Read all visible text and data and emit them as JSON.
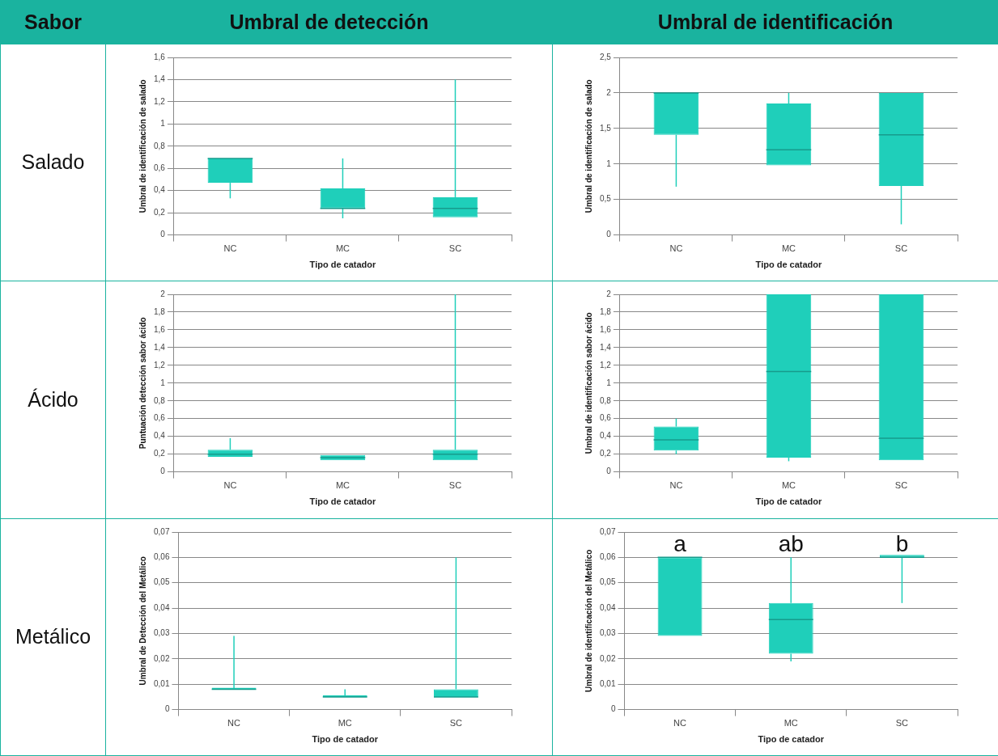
{
  "chart_data": [
    {
      "type": "other",
      "annotations": [
        "Sabor",
        "Umbral de detección",
        "Umbral de identificación",
        "Salado",
        "Ácido",
        "Metálico"
      ]
    },
    {
      "type": "box",
      "xlabel": "Tipo de catador",
      "ylabel": "Umbral de identificación de salado",
      "categories": [
        "NC",
        "MC",
        "SC"
      ],
      "ylim": [
        0,
        1.6
      ],
      "yticks": [
        0,
        {
          "value": 0.2,
          "label": "0,2"
        },
        {
          "value": 0.4,
          "label": "0,4"
        },
        {
          "value": 0.6,
          "label": "0,6"
        },
        {
          "value": 0.8,
          "label": "0,8"
        },
        1,
        {
          "value": 1.2,
          "label": "1,2"
        },
        {
          "value": 1.4,
          "label": "1,4"
        },
        {
          "value": 1.6,
          "label": "1,6"
        }
      ],
      "grid": "y",
      "series": [
        {
          "color": "#1fcfba",
          "boxes": [
            {
              "low": 0.33,
              "q1": 0.47,
              "median": 0.69,
              "q3": 0.69,
              "high": 0.69
            },
            {
              "low": 0.15,
              "q1": 0.24,
              "median": 0.24,
              "q3": 0.42,
              "high": 0.69
            },
            {
              "low": 0.16,
              "q1": 0.16,
              "median": 0.24,
              "q3": 0.34,
              "high": 1.4
            }
          ]
        }
      ]
    },
    {
      "type": "box",
      "xlabel": "Tipo de catador",
      "ylabel": "Umbral de identificación de salado",
      "categories": [
        "NC",
        "MC",
        "SC"
      ],
      "ylim": [
        0,
        2.5
      ],
      "yticks": [
        0,
        {
          "value": 0.5,
          "label": "0,5"
        },
        1,
        {
          "value": 1.5,
          "label": "1,5"
        },
        2,
        {
          "value": 2.5,
          "label": "2,5"
        }
      ],
      "grid": "y",
      "series": [
        {
          "color": "#1fcfba",
          "boxes": [
            {
              "low": 0.68,
              "q1": 1.41,
              "median": 2,
              "q3": 2,
              "high": 2
            },
            {
              "low": 0.98,
              "q1": 0.98,
              "median": 1.2,
              "q3": 1.85,
              "high": 2
            },
            {
              "low": 0.15,
              "q1": 0.69,
              "median": 1.41,
              "q3": 2,
              "high": 2
            }
          ]
        }
      ]
    },
    {
      "type": "box",
      "xlabel": "Tipo de catador",
      "ylabel": "Puntuación detección sabor ácido",
      "categories": [
        "NC",
        "MC",
        "SC"
      ],
      "ylim": [
        0,
        2
      ],
      "yticks": [
        0,
        {
          "value": 0.2,
          "label": "0,2"
        },
        {
          "value": 0.4,
          "label": "0,4"
        },
        {
          "value": 0.6,
          "label": "0,6"
        },
        {
          "value": 0.8,
          "label": "0,8"
        },
        1,
        {
          "value": 1.2,
          "label": "1,2"
        },
        {
          "value": 1.4,
          "label": "1,4"
        },
        {
          "value": 1.6,
          "label": "1,6"
        },
        {
          "value": 1.8,
          "label": "1,8"
        },
        2
      ],
      "grid": "y",
      "series": [
        {
          "color": "#1fcfba",
          "boxes": [
            {
              "low": 0.17,
              "q1": 0.17,
              "median": 0.2,
              "q3": 0.25,
              "high": 0.38
            },
            {
              "low": 0.13,
              "q1": 0.13,
              "median": 0.16,
              "q3": 0.19,
              "high": 0.19
            },
            {
              "low": 0.13,
              "q1": 0.13,
              "median": 0.2,
              "q3": 0.25,
              "high": 2
            }
          ]
        }
      ]
    },
    {
      "type": "box",
      "xlabel": "Tipo de catador",
      "ylabel": "Umbral de identificación sabor ácido",
      "categories": [
        "NC",
        "MC",
        "SC"
      ],
      "ylim": [
        0,
        2
      ],
      "yticks": [
        0,
        {
          "value": 0.2,
          "label": "0,2"
        },
        {
          "value": 0.4,
          "label": "0,4"
        },
        {
          "value": 0.6,
          "label": "0,6"
        },
        {
          "value": 0.8,
          "label": "0,8"
        },
        1,
        {
          "value": 1.2,
          "label": "1,2"
        },
        {
          "value": 1.4,
          "label": "1,4"
        },
        {
          "value": 1.6,
          "label": "1,6"
        },
        {
          "value": 1.8,
          "label": "1,8"
        },
        2
      ],
      "grid": "y",
      "series": [
        {
          "color": "#1fcfba",
          "boxes": [
            {
              "low": 0.2,
              "q1": 0.24,
              "median": 0.36,
              "q3": 0.51,
              "high": 0.6
            },
            {
              "low": 0.12,
              "q1": 0.16,
              "median": 1.13,
              "q3": 2,
              "high": 2
            },
            {
              "low": 0.13,
              "q1": 0.13,
              "median": 0.38,
              "q3": 2,
              "high": 2
            }
          ]
        }
      ]
    },
    {
      "type": "box",
      "xlabel": "Tipo de catador",
      "ylabel": "Umbral de Detección del Metálico",
      "categories": [
        "NC",
        "MC",
        "SC"
      ],
      "ylim": [
        0,
        0.07
      ],
      "yticks": [
        0,
        {
          "value": 0.01,
          "label": "0,01"
        },
        {
          "value": 0.02,
          "label": "0,02"
        },
        {
          "value": 0.03,
          "label": "0,03"
        },
        {
          "value": 0.04,
          "label": "0,04"
        },
        {
          "value": 0.05,
          "label": "0,05"
        },
        {
          "value": 0.06,
          "label": "0,06"
        },
        {
          "value": 0.07,
          "label": "0,07"
        }
      ],
      "grid": "y",
      "series": [
        {
          "color": "#1fcfba",
          "boxes": [
            {
              "low": 0.008,
              "q1": 0.008,
              "median": 0.008,
              "q3": 0.008,
              "high": 0.029
            },
            {
              "low": 0.005,
              "q1": 0.005,
              "median": 0.005,
              "q3": 0.005,
              "high": 0.008
            },
            {
              "low": 0.005,
              "q1": 0.005,
              "median": 0.005,
              "q3": 0.008,
              "high": 0.06
            }
          ]
        }
      ]
    },
    {
      "type": "box",
      "xlabel": "Tipo de catador",
      "ylabel": "Umbral de identificación del Metálico",
      "categories": [
        "NC",
        "MC",
        "SC"
      ],
      "ylim": [
        0,
        0.07
      ],
      "yticks": [
        0,
        {
          "value": 0.01,
          "label": "0,01"
        },
        {
          "value": 0.02,
          "label": "0,02"
        },
        {
          "value": 0.03,
          "label": "0,03"
        },
        {
          "value": 0.04,
          "label": "0,04"
        },
        {
          "value": 0.05,
          "label": "0,05"
        },
        {
          "value": 0.06,
          "label": "0,06"
        },
        {
          "value": 0.07,
          "label": "0,07"
        }
      ],
      "grid": "y",
      "annotations": [
        "a",
        "ab",
        "b"
      ],
      "series": [
        {
          "color": "#1fcfba",
          "boxes": [
            {
              "low": 0.029,
              "q1": 0.029,
              "median": 0.06,
              "q3": 0.06,
              "high": 0.06
            },
            {
              "low": 0.019,
              "q1": 0.022,
              "median": 0.0355,
              "q3": 0.042,
              "high": 0.06
            },
            {
              "low": 0.042,
              "q1": 0.06,
              "median": 0.06,
              "q3": 0.061,
              "high": 0.061
            }
          ]
        }
      ]
    }
  ]
}
